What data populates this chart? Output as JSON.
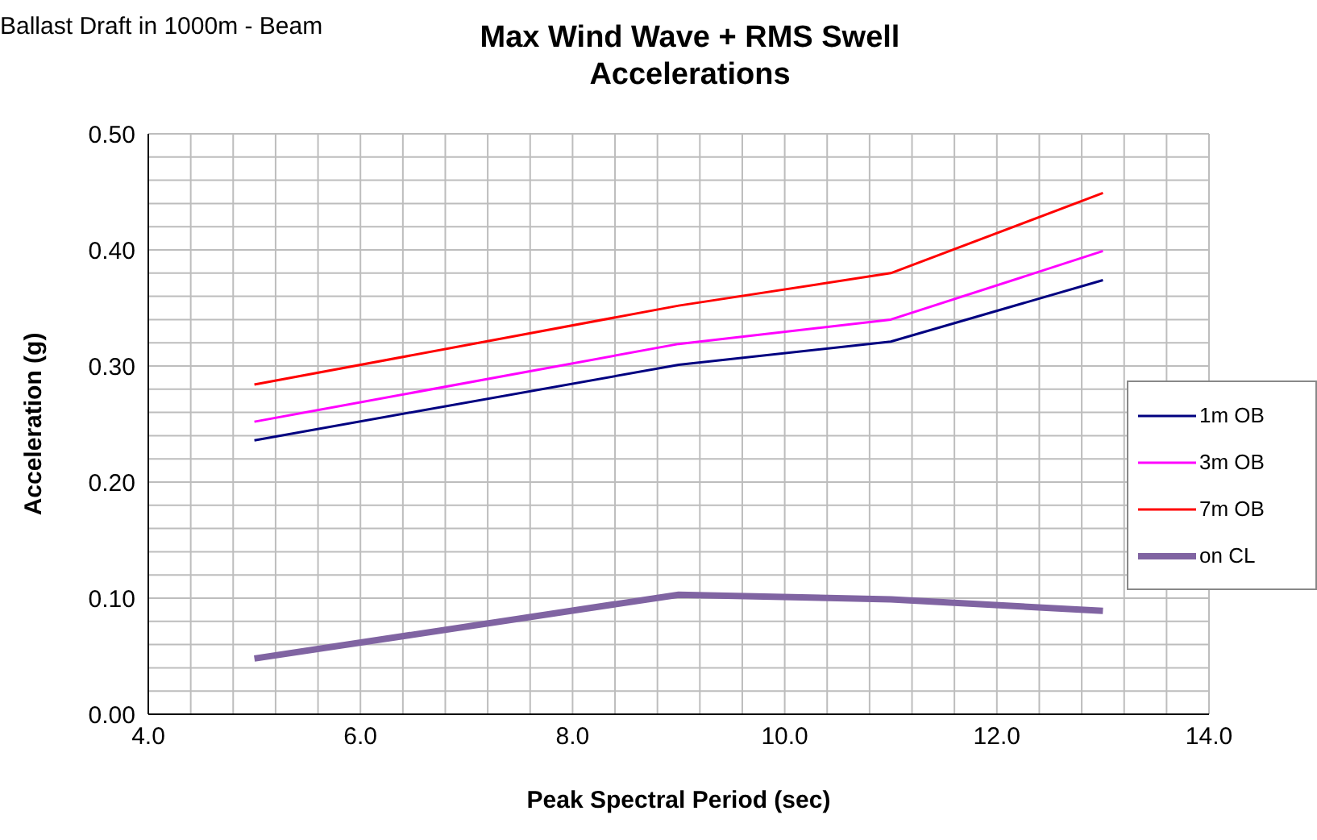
{
  "chart_data": {
    "type": "line",
    "title": "Max Wind Wave + RMS Swell Accelerations",
    "subtitle": "Ballast Draft in 1000m - Beam",
    "xlabel": "Peak Spectral Period (sec)",
    "ylabel": "Acceleration (g)",
    "x": [
      5,
      9,
      11,
      13
    ],
    "series": [
      {
        "name": "1m OB",
        "color": "#000080",
        "values": [
          0.236,
          0.301,
          0.321,
          0.374
        ]
      },
      {
        "name": "3m OB",
        "color": "#ff00ff",
        "values": [
          0.252,
          0.319,
          0.34,
          0.399
        ]
      },
      {
        "name": "7m OB",
        "color": "#ff0000",
        "values": [
          0.284,
          0.352,
          0.38,
          0.449
        ]
      },
      {
        "name": "on CL",
        "color": "#8064a2",
        "values": [
          0.048,
          0.103,
          0.099,
          0.089
        ]
      }
    ],
    "xlim": [
      4,
      14
    ],
    "xticks": [
      {
        "value": 4,
        "label": "4.0"
      },
      {
        "value": 4.4,
        "label": null
      },
      {
        "value": 4.8,
        "label": null
      },
      {
        "value": 5.2,
        "label": null
      },
      {
        "value": 5.6,
        "label": null
      },
      {
        "value": 6,
        "label": "6.0"
      },
      {
        "value": 6.4,
        "label": null
      },
      {
        "value": 6.8,
        "label": null
      },
      {
        "value": 7.2,
        "label": null
      },
      {
        "value": 7.6,
        "label": null
      },
      {
        "value": 8,
        "label": "8.0"
      },
      {
        "value": 8.4,
        "label": null
      },
      {
        "value": 8.8,
        "label": null
      },
      {
        "value": 9.2,
        "label": null
      },
      {
        "value": 9.6,
        "label": null
      },
      {
        "value": 10,
        "label": "10.0"
      },
      {
        "value": 10.4,
        "label": null
      },
      {
        "value": 10.8,
        "label": null
      },
      {
        "value": 11.2,
        "label": null
      },
      {
        "value": 11.6,
        "label": null
      },
      {
        "value": 12,
        "label": "12.0"
      },
      {
        "value": 12.4,
        "label": null
      },
      {
        "value": 12.8,
        "label": null
      },
      {
        "value": 13.2,
        "label": null
      },
      {
        "value": 13.6,
        "label": null
      },
      {
        "value": 14,
        "label": "14.0"
      }
    ],
    "ylim": [
      0,
      0.5
    ],
    "yticks": [
      {
        "value": 0,
        "label": "0.00"
      },
      {
        "value": 0.02,
        "label": null
      },
      {
        "value": 0.04,
        "label": null
      },
      {
        "value": 0.06,
        "label": null
      },
      {
        "value": 0.08,
        "label": null
      },
      {
        "value": 0.1,
        "label": "0.10"
      },
      {
        "value": 0.12,
        "label": null
      },
      {
        "value": 0.14,
        "label": null
      },
      {
        "value": 0.16,
        "label": null
      },
      {
        "value": 0.18,
        "label": null
      },
      {
        "value": 0.2,
        "label": "0.20"
      },
      {
        "value": 0.22,
        "label": null
      },
      {
        "value": 0.24,
        "label": null
      },
      {
        "value": 0.26,
        "label": null
      },
      {
        "value": 0.28,
        "label": null
      },
      {
        "value": 0.3,
        "label": "0.30"
      },
      {
        "value": 0.32,
        "label": null
      },
      {
        "value": 0.34,
        "label": null
      },
      {
        "value": 0.36,
        "label": null
      },
      {
        "value": 0.38,
        "label": null
      },
      {
        "value": 0.4,
        "label": "0.40"
      },
      {
        "value": 0.42,
        "label": null
      },
      {
        "value": 0.44,
        "label": null
      },
      {
        "value": 0.46,
        "label": null
      },
      {
        "value": 0.48,
        "label": null
      },
      {
        "value": 0.5,
        "label": "0.50"
      }
    ],
    "grid": true,
    "legend": "right",
    "marker": "none",
    "line_style": "solid"
  }
}
